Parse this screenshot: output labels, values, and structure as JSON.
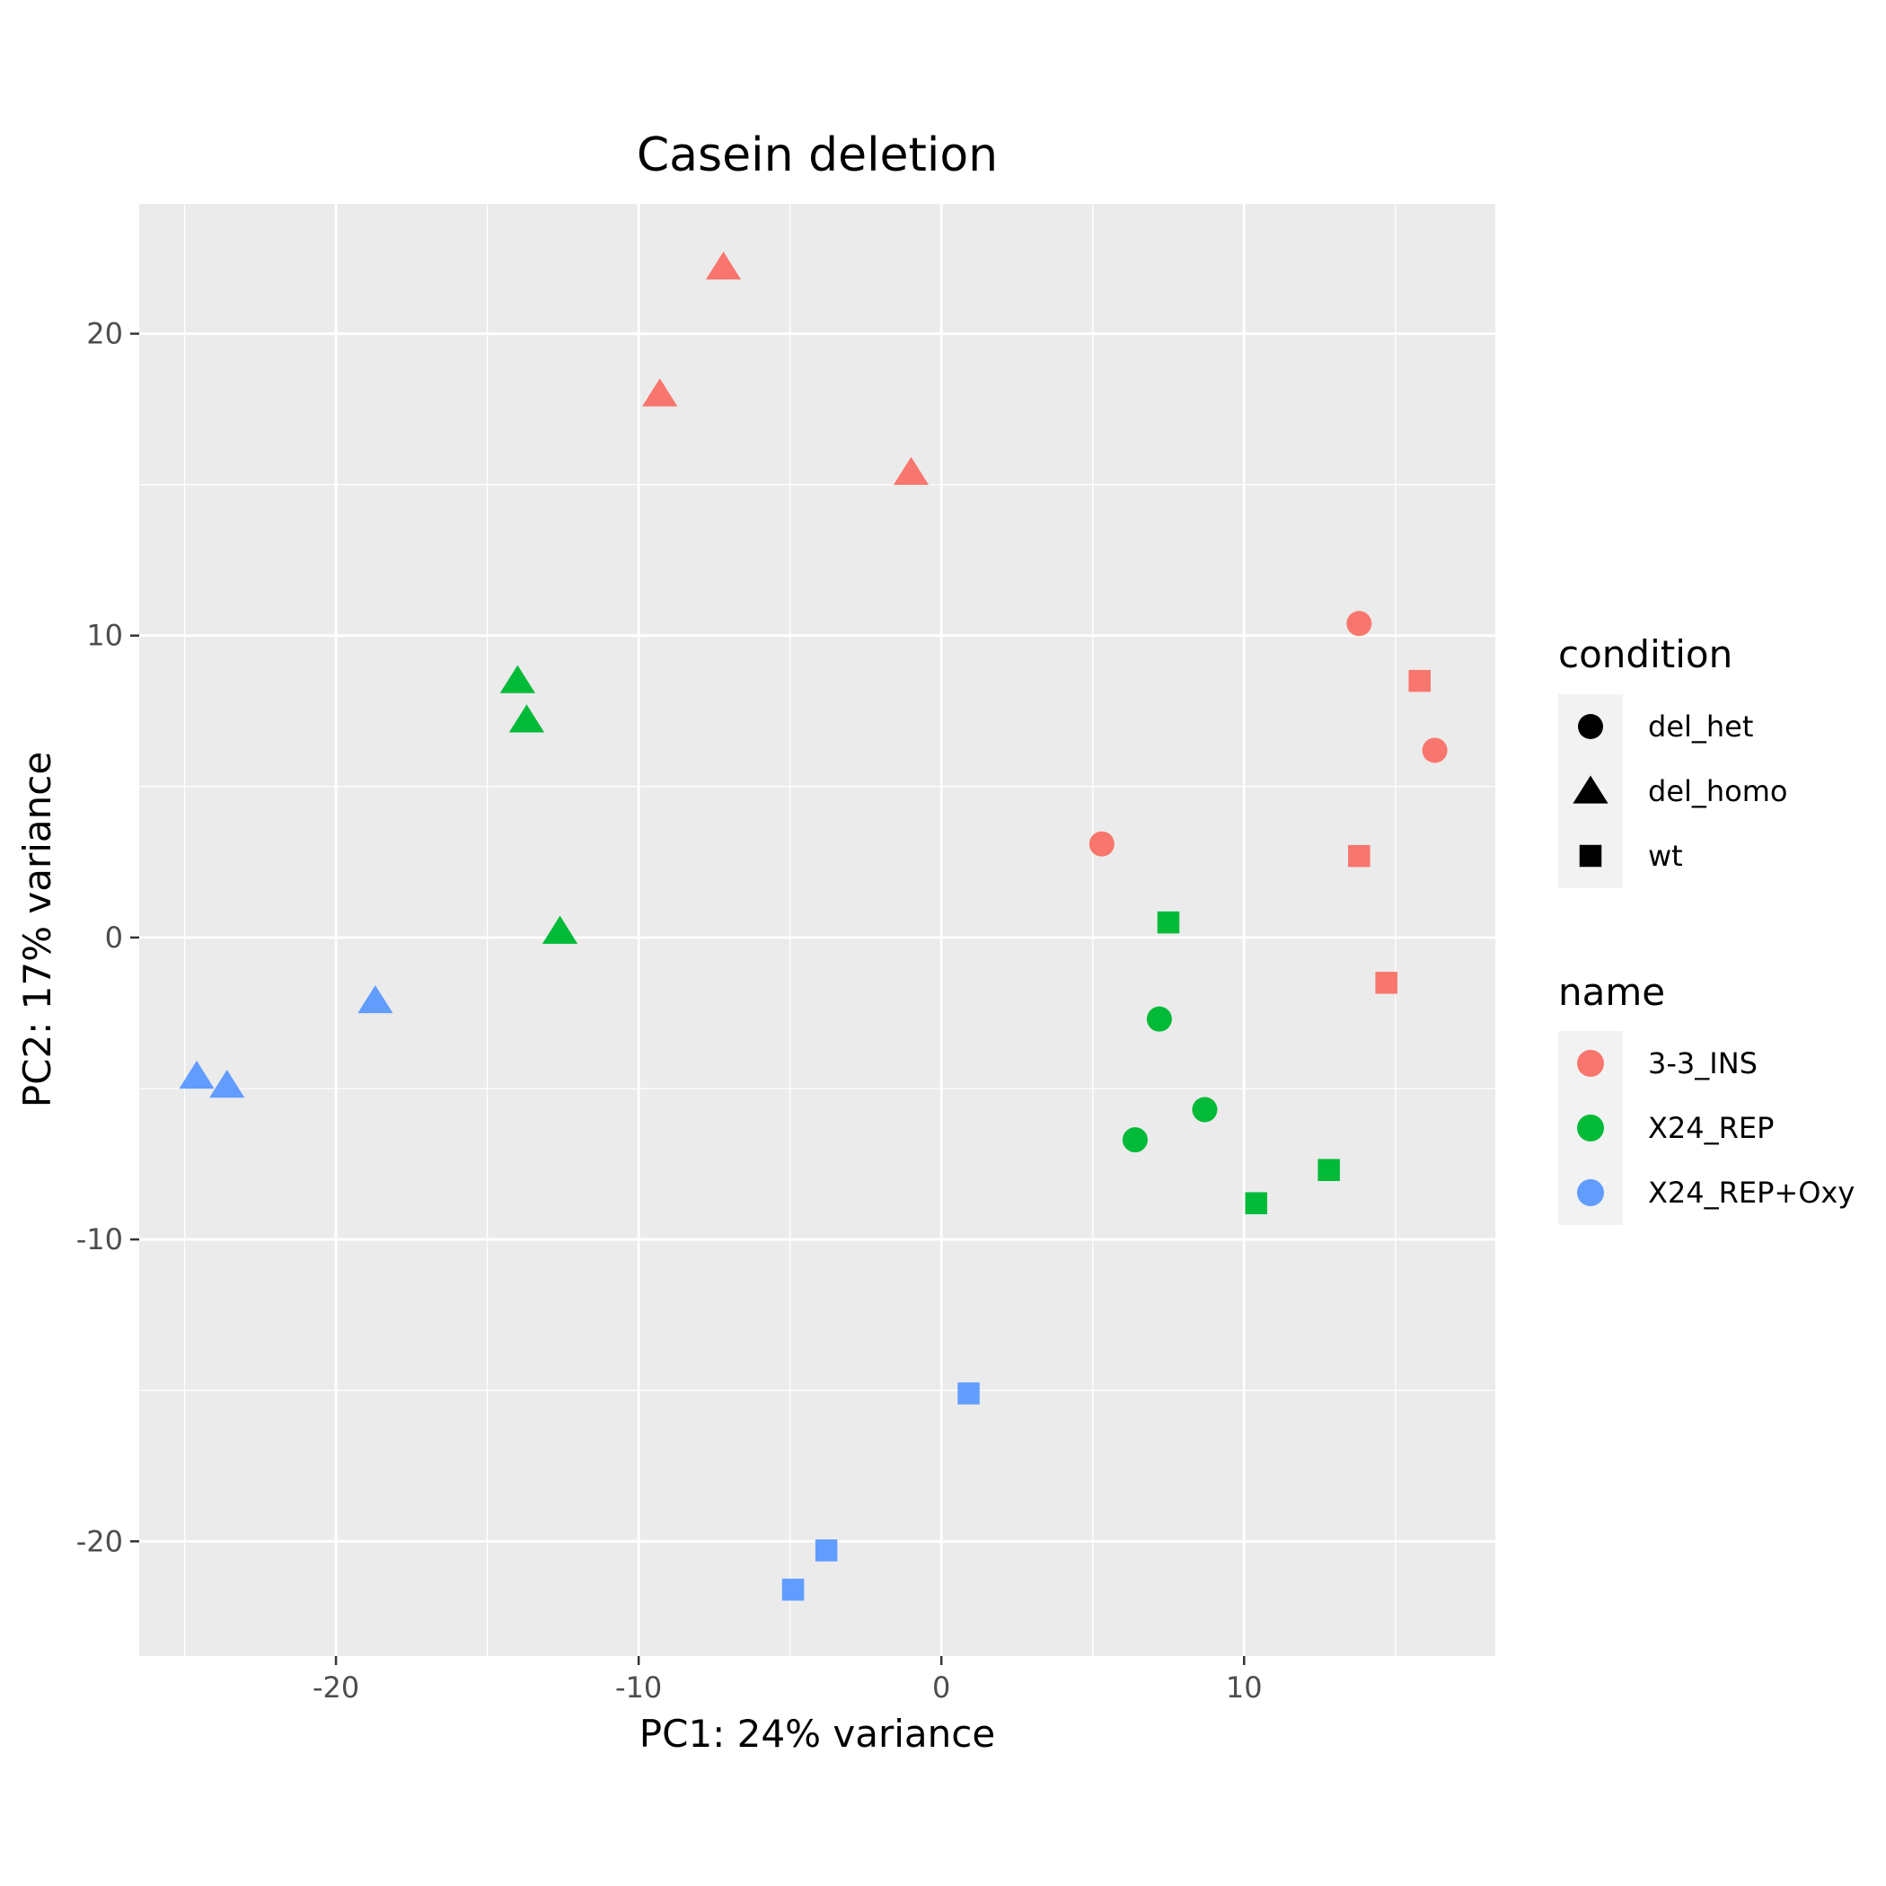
{
  "chart_data": {
    "type": "scatter",
    "title": "Casein deletion",
    "xlabel": "PC1: 24% variance",
    "ylabel": "PC2: 17% variance",
    "xlim": [
      -26.5,
      18.3
    ],
    "ylim": [
      -23.8,
      24.3
    ],
    "x_ticks": [
      -20,
      -10,
      0,
      10
    ],
    "y_ticks": [
      20,
      10,
      0,
      -10,
      -20
    ],
    "x_tick_labels": [
      "-20",
      "-10",
      "0",
      "10"
    ],
    "y_tick_labels": [
      "20",
      "10",
      "0",
      "-10",
      "-20"
    ],
    "grid": true,
    "legend_position": "right",
    "shape_legend": {
      "title": "condition",
      "items": [
        {
          "label": "del_het",
          "shape": "circle"
        },
        {
          "label": "del_homo",
          "shape": "triangle"
        },
        {
          "label": "wt",
          "shape": "square"
        }
      ]
    },
    "color_legend": {
      "title": "name",
      "items": [
        {
          "label": "3-3_INS",
          "color": "#F8766D"
        },
        {
          "label": "X24_REP",
          "color": "#00BA38"
        },
        {
          "label": "X24_REP+Oxy",
          "color": "#619CFF"
        }
      ]
    },
    "points": [
      {
        "x": -7.2,
        "y": 22.2,
        "name": "3-3_INS",
        "condition": "del_homo"
      },
      {
        "x": -9.3,
        "y": 18.0,
        "name": "3-3_INS",
        "condition": "del_homo"
      },
      {
        "x": -1.0,
        "y": 15.4,
        "name": "3-3_INS",
        "condition": "del_homo"
      },
      {
        "x": 13.8,
        "y": 10.4,
        "name": "3-3_INS",
        "condition": "del_het"
      },
      {
        "x": 16.3,
        "y": 6.2,
        "name": "3-3_INS",
        "condition": "del_het"
      },
      {
        "x": 5.3,
        "y": 3.1,
        "name": "3-3_INS",
        "condition": "del_het"
      },
      {
        "x": 15.8,
        "y": 8.5,
        "name": "3-3_INS",
        "condition": "wt"
      },
      {
        "x": 13.8,
        "y": 2.7,
        "name": "3-3_INS",
        "condition": "wt"
      },
      {
        "x": 14.7,
        "y": -1.5,
        "name": "3-3_INS",
        "condition": "wt"
      },
      {
        "x": -14.0,
        "y": 8.5,
        "name": "X24_REP",
        "condition": "del_homo"
      },
      {
        "x": -13.7,
        "y": 7.2,
        "name": "X24_REP",
        "condition": "del_homo"
      },
      {
        "x": -12.6,
        "y": 0.2,
        "name": "X24_REP",
        "condition": "del_homo"
      },
      {
        "x": 7.2,
        "y": -2.7,
        "name": "X24_REP",
        "condition": "del_het"
      },
      {
        "x": 8.7,
        "y": -5.7,
        "name": "X24_REP",
        "condition": "del_het"
      },
      {
        "x": 6.4,
        "y": -6.7,
        "name": "X24_REP",
        "condition": "del_het"
      },
      {
        "x": 7.5,
        "y": 0.5,
        "name": "X24_REP",
        "condition": "wt"
      },
      {
        "x": 12.8,
        "y": -7.7,
        "name": "X24_REP",
        "condition": "wt"
      },
      {
        "x": 10.4,
        "y": -8.8,
        "name": "X24_REP",
        "condition": "wt"
      },
      {
        "x": -18.7,
        "y": -2.1,
        "name": "X24_REP+Oxy",
        "condition": "del_homo"
      },
      {
        "x": -24.6,
        "y": -4.6,
        "name": "X24_REP+Oxy",
        "condition": "del_homo"
      },
      {
        "x": -23.6,
        "y": -4.9,
        "name": "X24_REP+Oxy",
        "condition": "del_homo"
      },
      {
        "x": 0.9,
        "y": -15.1,
        "name": "X24_REP+Oxy",
        "condition": "wt"
      },
      {
        "x": -3.8,
        "y": -20.3,
        "name": "X24_REP+Oxy",
        "condition": "wt"
      },
      {
        "x": -4.9,
        "y": -21.6,
        "name": "X24_REP+Oxy",
        "condition": "wt"
      }
    ]
  }
}
